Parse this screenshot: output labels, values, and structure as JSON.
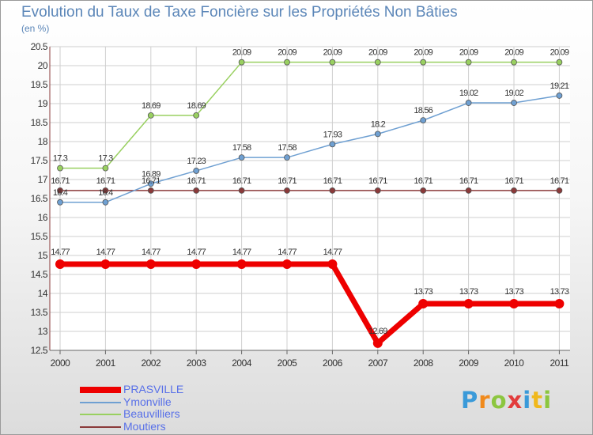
{
  "chart_data": {
    "type": "line",
    "title": "Evolution du Taux de Taxe Foncière sur les Propriétés Non Bâties",
    "subtitle": "(en %)",
    "categories": [
      "2000",
      "2001",
      "2002",
      "2003",
      "2004",
      "2005",
      "2006",
      "2007",
      "2008",
      "2009",
      "2010",
      "2011"
    ],
    "ylim": [
      12.5,
      20.5
    ],
    "yticks": [
      "12.5",
      "13",
      "13.5",
      "14",
      "14.5",
      "15",
      "15.5",
      "16",
      "16.5",
      "17",
      "17.5",
      "18",
      "18.5",
      "19",
      "19.5",
      "20",
      "20.5"
    ],
    "series": [
      {
        "name": "PRASVILLE",
        "color": "#ee0000",
        "values": [
          14.77,
          14.77,
          14.77,
          14.77,
          14.77,
          14.77,
          14.77,
          12.69,
          13.73,
          13.73,
          13.73,
          13.73
        ],
        "labels": [
          "14.77",
          "14.77",
          "14.77",
          "14.77",
          "14.77",
          "14.77",
          "14.77",
          "12.69",
          "13.73",
          "13.73",
          "13.73",
          "13.73"
        ]
      },
      {
        "name": "Ymonville",
        "color": "#6fa0d2",
        "values": [
          16.4,
          16.4,
          16.89,
          17.23,
          17.58,
          17.58,
          17.93,
          18.2,
          18.56,
          19.02,
          19.02,
          19.21
        ],
        "labels": [
          "16.4",
          "16.4",
          "16.89",
          "17.23",
          "17.58",
          "17.58",
          "17.93",
          "18.2",
          "18.56",
          "19.02",
          "19.02",
          "19.21"
        ]
      },
      {
        "name": "Beauvilliers",
        "color": "#99d060",
        "values": [
          17.3,
          17.3,
          18.69,
          18.69,
          20.09,
          20.09,
          20.09,
          20.09,
          20.09,
          20.09,
          20.09,
          20.09
        ],
        "labels": [
          "17.3",
          "17.3",
          "18.69",
          "18.69",
          "20.09",
          "20.09",
          "20.09",
          "20.09",
          "20.09",
          "20.09",
          "20.09",
          "20.09"
        ]
      },
      {
        "name": "Moutiers",
        "color": "#8b3a3a",
        "values": [
          16.71,
          16.71,
          16.71,
          16.71,
          16.71,
          16.71,
          16.71,
          16.71,
          16.71,
          16.71,
          16.71,
          16.71
        ],
        "labels": [
          "16.71",
          "16.71",
          "16.71",
          "16.71",
          "16.71",
          "16.71",
          "16.71",
          "16.71",
          "16.71",
          "16.71",
          "16.71",
          "16.71"
        ]
      }
    ],
    "legend": "bottom-left"
  },
  "brand": {
    "letters": [
      "P",
      "r",
      "o",
      "x",
      "i",
      "t",
      "i"
    ],
    "colors": [
      "#3a9ad9",
      "#f08a1c",
      "#8cc63f",
      "#e23c3c",
      "#3a9ad9",
      "#f0b81c",
      "#8cc63f"
    ]
  }
}
